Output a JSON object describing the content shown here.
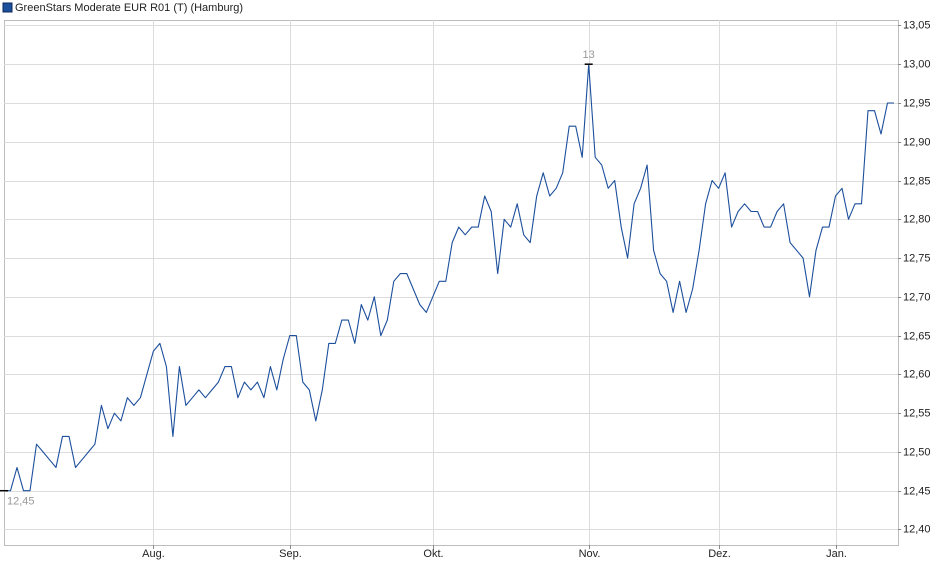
{
  "chart_data": {
    "type": "line",
    "grid": true,
    "legend": "top-left",
    "ylim": [
      12.38,
      13.057
    ],
    "yticks": [
      {
        "value": 12.4,
        "label": "12,40"
      },
      {
        "value": 12.45,
        "label": "12,45"
      },
      {
        "value": 12.5,
        "label": "12,50"
      },
      {
        "value": 12.55,
        "label": "12,55"
      },
      {
        "value": 12.6,
        "label": "12,60"
      },
      {
        "value": 12.65,
        "label": "12,65"
      },
      {
        "value": 12.7,
        "label": "12,70"
      },
      {
        "value": 12.75,
        "label": "12,75"
      },
      {
        "value": 12.8,
        "label": "12,80"
      },
      {
        "value": 12.85,
        "label": "12,85"
      },
      {
        "value": 12.9,
        "label": "12,90"
      },
      {
        "value": 12.95,
        "label": "12,95"
      },
      {
        "value": 13.0,
        "label": "13,00"
      },
      {
        "value": 13.05,
        "label": "13,05"
      }
    ],
    "categories": [
      null,
      null,
      null,
      null,
      null,
      null,
      null,
      null,
      null,
      null,
      null,
      null,
      null,
      null,
      null,
      null,
      null,
      null,
      null,
      null,
      null,
      null,
      null,
      "Aug.",
      null,
      null,
      null,
      null,
      null,
      null,
      null,
      null,
      null,
      null,
      null,
      null,
      null,
      null,
      null,
      null,
      null,
      null,
      null,
      null,
      "Sep.",
      null,
      null,
      null,
      null,
      null,
      null,
      null,
      null,
      null,
      null,
      null,
      null,
      null,
      null,
      null,
      null,
      null,
      null,
      null,
      null,
      null,
      "Okt.",
      null,
      null,
      null,
      null,
      null,
      null,
      null,
      null,
      null,
      null,
      null,
      null,
      null,
      null,
      null,
      null,
      null,
      null,
      null,
      null,
      null,
      null,
      null,
      "Nov.",
      null,
      null,
      null,
      null,
      null,
      null,
      null,
      null,
      null,
      null,
      null,
      null,
      null,
      null,
      null,
      null,
      null,
      null,
      null,
      "Dez.",
      null,
      null,
      null,
      null,
      null,
      null,
      null,
      null,
      null,
      null,
      null,
      null,
      null,
      null,
      null,
      null,
      null,
      "Jan.",
      null,
      null,
      null,
      null,
      null,
      null,
      null,
      null,
      null
    ],
    "series": [
      {
        "name": "GreenStars Moderate EUR R01 (T) (Hamburg)",
        "color": "#1c4f9c",
        "values": [
          12.45,
          12.45,
          12.48,
          12.45,
          12.45,
          12.51,
          12.5,
          12.49,
          12.48,
          12.52,
          12.52,
          12.48,
          12.49,
          12.5,
          12.51,
          12.56,
          12.53,
          12.55,
          12.54,
          12.57,
          12.56,
          12.57,
          12.6,
          12.63,
          12.64,
          12.61,
          12.52,
          12.61,
          12.56,
          12.57,
          12.58,
          12.57,
          12.58,
          12.59,
          12.61,
          12.61,
          12.57,
          12.59,
          12.58,
          12.59,
          12.57,
          12.61,
          12.58,
          12.62,
          12.65,
          12.65,
          12.59,
          12.58,
          12.54,
          12.58,
          12.64,
          12.64,
          12.67,
          12.67,
          12.64,
          12.69,
          12.67,
          12.7,
          12.65,
          12.67,
          12.72,
          12.73,
          12.73,
          12.71,
          12.69,
          12.68,
          12.7,
          12.72,
          12.72,
          12.77,
          12.79,
          12.78,
          12.79,
          12.79,
          12.83,
          12.81,
          12.73,
          12.8,
          12.79,
          12.82,
          12.78,
          12.77,
          12.83,
          12.86,
          12.83,
          12.84,
          12.86,
          12.92,
          12.92,
          12.88,
          13.0,
          12.88,
          12.87,
          12.84,
          12.85,
          12.79,
          12.75,
          12.82,
          12.84,
          12.87,
          12.76,
          12.73,
          12.72,
          12.68,
          12.72,
          12.68,
          12.71,
          12.76,
          12.82,
          12.85,
          12.84,
          12.86,
          12.79,
          12.81,
          12.82,
          12.81,
          12.81,
          12.79,
          12.79,
          12.81,
          12.82,
          12.77,
          12.76,
          12.75,
          12.7,
          12.76,
          12.79,
          12.79,
          12.83,
          12.84,
          12.8,
          12.82,
          12.82,
          12.94,
          12.94,
          12.91,
          12.95,
          12.95
        ],
        "value_labels": [
          "12,45",
          null,
          null,
          null,
          null,
          null,
          null,
          null,
          null,
          null,
          null,
          null,
          null,
          null,
          null,
          null,
          null,
          null,
          null,
          null,
          null,
          null,
          null,
          null,
          null,
          null,
          null,
          null,
          null,
          null,
          null,
          null,
          null,
          null,
          null,
          null,
          null,
          null,
          null,
          null,
          null,
          null,
          null,
          null,
          null,
          null,
          null,
          null,
          null,
          null,
          null,
          null,
          null,
          null,
          null,
          null,
          null,
          null,
          null,
          null,
          null,
          null,
          null,
          null,
          null,
          null,
          null,
          null,
          null,
          null,
          null,
          null,
          null,
          null,
          null,
          null,
          null,
          null,
          null,
          null,
          null,
          null,
          null,
          null,
          null,
          null,
          null,
          null,
          null,
          null,
          "13",
          null,
          null,
          null,
          null,
          null,
          null,
          null,
          null,
          null,
          null,
          null,
          null,
          null,
          null,
          null,
          null,
          null,
          null,
          null,
          null,
          null,
          null,
          null,
          null,
          null,
          null,
          null,
          null,
          null,
          null,
          null,
          null,
          null,
          null,
          null,
          null,
          null,
          null,
          null,
          null,
          null,
          null,
          null,
          null,
          null,
          null,
          null
        ]
      }
    ]
  }
}
